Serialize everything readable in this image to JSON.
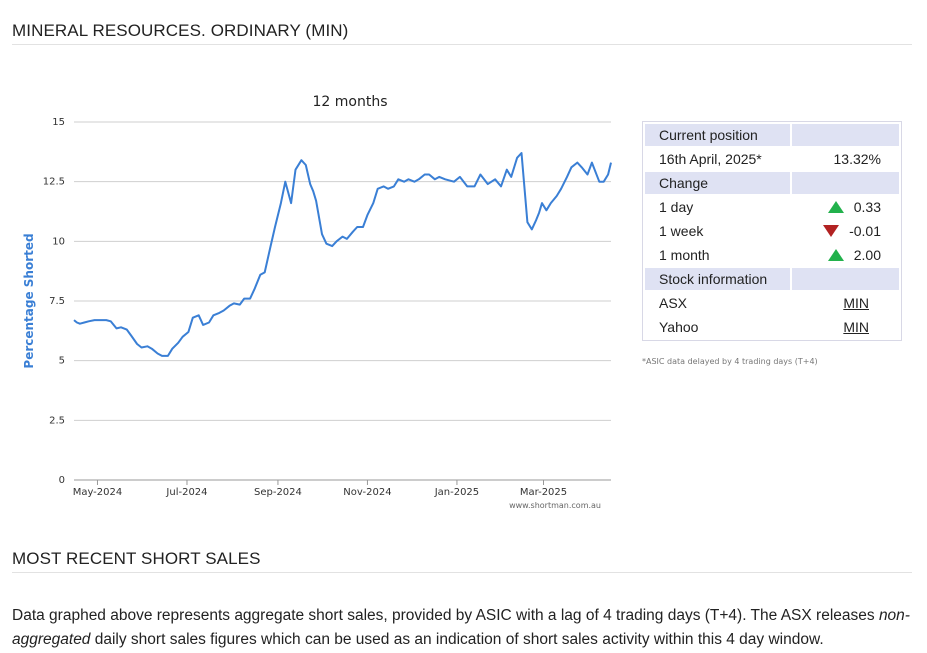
{
  "header": {
    "title": "MINERAL RESOURCES. ORDINARY (MIN)"
  },
  "chart_data": {
    "type": "line",
    "title": "12 months",
    "ylabel": "Percentage Shorted",
    "xlabel": "",
    "ylim": [
      0,
      15
    ],
    "yticks": [
      0,
      2.5,
      5,
      7.5,
      10,
      12.5,
      15
    ],
    "ytick_labels": [
      "0",
      "2.5",
      "5",
      "7.5",
      "10",
      "12.5",
      "15"
    ],
    "x_range": [
      "2024-04-15",
      "2025-04-16"
    ],
    "xticks": [
      "2024-05-01",
      "2024-07-01",
      "2024-09-01",
      "2024-11-01",
      "2025-01-01",
      "2025-03-01"
    ],
    "xtick_labels": [
      "May-2024",
      "Jul-2024",
      "Sep-2024",
      "Nov-2024",
      "Jan-2025",
      "Mar-2025"
    ],
    "grid": true,
    "watermark": "www.shortman.com.au",
    "color": "#3a7fd5",
    "series": [
      {
        "x": [
          "2024-04-15",
          "2024-04-17",
          "2024-04-19",
          "2024-04-22",
          "2024-04-25",
          "2024-04-29",
          "2024-05-02",
          "2024-05-07",
          "2024-05-10",
          "2024-05-14",
          "2024-05-17",
          "2024-05-21",
          "2024-05-24",
          "2024-05-28",
          "2024-05-31",
          "2024-06-04",
          "2024-06-07",
          "2024-06-11",
          "2024-06-14",
          "2024-06-18",
          "2024-06-21",
          "2024-06-25",
          "2024-06-28",
          "2024-07-02",
          "2024-07-05",
          "2024-07-09",
          "2024-07-12",
          "2024-07-16",
          "2024-07-19",
          "2024-07-23",
          "2024-07-26",
          "2024-07-30",
          "2024-08-02",
          "2024-08-06",
          "2024-08-09",
          "2024-08-13",
          "2024-08-16",
          "2024-08-20",
          "2024-08-23",
          "2024-08-27",
          "2024-08-30",
          "2024-09-03",
          "2024-09-06",
          "2024-09-10",
          "2024-09-13",
          "2024-09-17",
          "2024-09-20",
          "2024-09-23",
          "2024-09-25",
          "2024-09-27",
          "2024-10-01",
          "2024-10-04",
          "2024-10-08",
          "2024-10-11",
          "2024-10-15",
          "2024-10-18",
          "2024-10-22",
          "2024-10-25",
          "2024-10-29",
          "2024-11-01",
          "2024-11-05",
          "2024-11-08",
          "2024-11-12",
          "2024-11-15",
          "2024-11-19",
          "2024-11-22",
          "2024-11-26",
          "2024-11-29",
          "2024-12-03",
          "2024-12-06",
          "2024-12-10",
          "2024-12-13",
          "2024-12-17",
          "2024-12-20",
          "2024-12-24",
          "2024-12-30",
          "2025-01-03",
          "2025-01-08",
          "2025-01-13",
          "2025-01-17",
          "2025-01-22",
          "2025-01-27",
          "2025-01-31",
          "2025-02-04",
          "2025-02-07",
          "2025-02-11",
          "2025-02-14",
          "2025-02-18",
          "2025-02-21",
          "2025-02-24",
          "2025-02-26",
          "2025-02-28",
          "2025-03-03",
          "2025-03-06",
          "2025-03-10",
          "2025-03-13",
          "2025-03-17",
          "2025-03-20",
          "2025-03-24",
          "2025-03-27",
          "2025-03-31",
          "2025-04-03",
          "2025-04-08",
          "2025-04-11",
          "2025-04-14",
          "2025-04-16"
        ],
        "y": [
          6.7,
          6.6,
          6.55,
          6.6,
          6.65,
          6.7,
          6.7,
          6.7,
          6.65,
          6.35,
          6.4,
          6.3,
          6.05,
          5.7,
          5.55,
          5.6,
          5.5,
          5.3,
          5.2,
          5.2,
          5.5,
          5.75,
          6.0,
          6.2,
          6.8,
          6.9,
          6.5,
          6.6,
          6.9,
          7.0,
          7.1,
          7.3,
          7.4,
          7.35,
          7.6,
          7.6,
          8.0,
          8.6,
          8.7,
          9.8,
          10.6,
          11.6,
          12.5,
          11.6,
          13.0,
          13.4,
          13.2,
          12.4,
          12.1,
          11.7,
          10.3,
          9.9,
          9.8,
          10.0,
          10.2,
          10.1,
          10.4,
          10.6,
          10.6,
          11.1,
          11.6,
          12.2,
          12.3,
          12.2,
          12.3,
          12.6,
          12.5,
          12.6,
          12.5,
          12.6,
          12.8,
          12.8,
          12.6,
          12.7,
          12.6,
          12.5,
          12.7,
          12.3,
          12.3,
          12.8,
          12.4,
          12.6,
          12.3,
          13.0,
          12.7,
          13.5,
          13.7,
          10.8,
          10.5,
          10.9,
          11.2,
          11.6,
          11.3,
          11.6,
          11.9,
          12.2,
          12.7,
          13.1,
          13.3,
          13.1,
          12.8,
          13.3,
          12.5,
          12.5,
          12.8,
          13.3
        ]
      }
    ]
  },
  "table": {
    "current_position_label": "Current position",
    "date": "16th April, 2025*",
    "current_value": "13.32%",
    "change_label": "Change",
    "rows": [
      {
        "label": "1 day",
        "value": "0.33",
        "direction": "up"
      },
      {
        "label": "1 week",
        "value": "-0.01",
        "direction": "down"
      },
      {
        "label": "1 month",
        "value": "2.00",
        "direction": "up"
      }
    ],
    "stock_info_label": "Stock information",
    "links": [
      {
        "label": "ASX",
        "value": "MIN"
      },
      {
        "label": "Yahoo",
        "value": "MIN"
      }
    ],
    "note": "*ASIC data delayed by 4 trading days (T+4)"
  },
  "section2": {
    "title": "MOST RECENT SHORT SALES",
    "para_part1": "Data graphed above represents aggregate short sales, provided by ASIC with a lag of 4 trading days (T+4). The ASX releases",
    "para_em": "non-aggregated",
    "para_part2": " daily short sales figures which can be used as an indication of short sales activity within this 4 day window."
  }
}
